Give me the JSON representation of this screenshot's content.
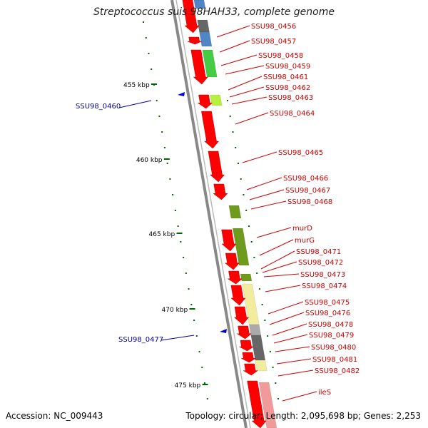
{
  "title": "Streptococcus suis 98HAH33, complete genome",
  "accession": "Accession: NC_009443",
  "topology": "Topology: circular; Length: 2,095,698 bp; Genes: 2,253",
  "colors": {
    "forward_gene": "#ff0000",
    "reverse_gene": "#0000cc",
    "label_forward": "#cc0000",
    "label_reverse": "#000099",
    "backbone": "#888888",
    "tick": "#006600"
  },
  "scale_labels": [
    "455 kbp",
    "460 kbp",
    "465 kbp",
    "470 kbp",
    "475 kbp"
  ],
  "forward_genes": [
    "SSU98_0456",
    "SSU98_0457",
    "SSU98_0458",
    "SSU98_0459",
    "SSU98_0461",
    "SSU98_0462",
    "SSU98_0463",
    "SSU98_0464",
    "SSU98_0465",
    "SSU98_0466",
    "SSU98_0467",
    "SSU98_0468",
    "murD",
    "murG",
    "SSU98_0471",
    "SSU98_0472",
    "SSU98_0473",
    "SSU98_0474",
    "SSU98_0475",
    "SSU98_0476",
    "SSU98_0478",
    "SSU98_0479",
    "SSU98_0480",
    "SSU98_0481",
    "SSU98_0482",
    "ileS"
  ],
  "reverse_genes": [
    "SSU98_0460",
    "SSU98_0477"
  ],
  "cog_colors": {
    "steel_blue": "#4f86c6",
    "dark_gray": "#666666",
    "green": "#44cc44",
    "lime": "#b8f040",
    "olive": "#6e9a1e",
    "pale_yellow": "#f2ec9e",
    "light_gray": "#aaaaaa",
    "pink": "#f09a9a"
  }
}
